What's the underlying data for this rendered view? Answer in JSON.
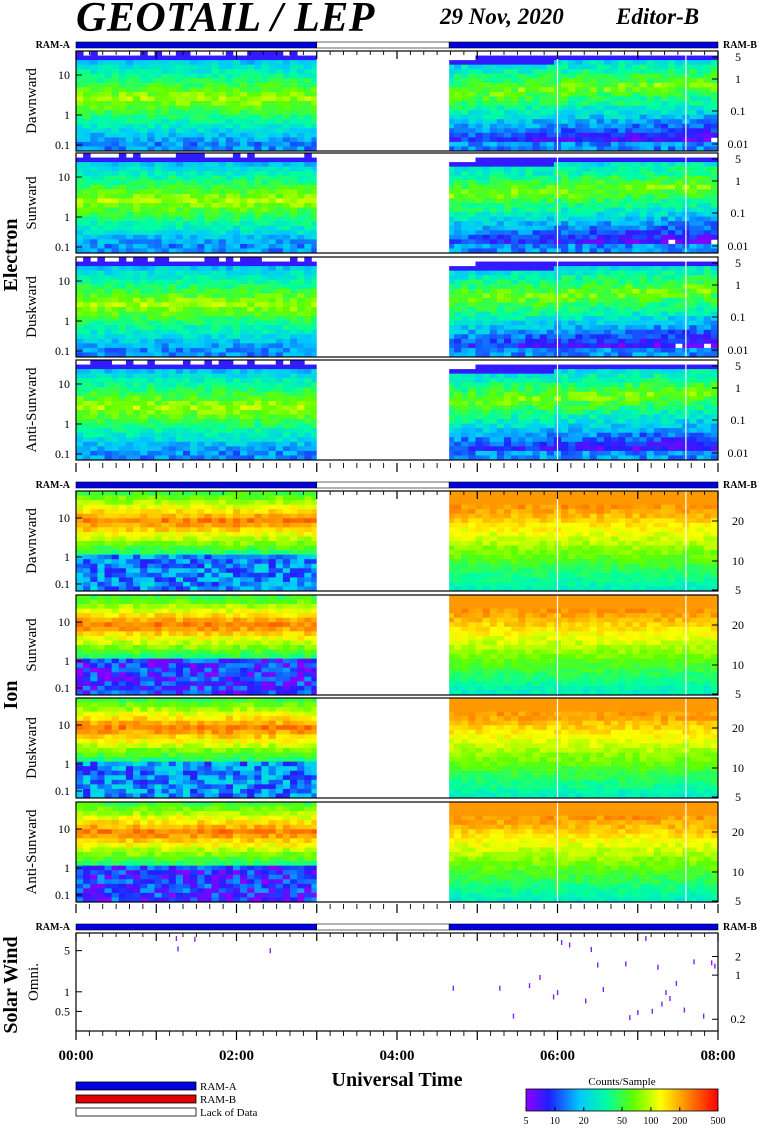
{
  "header": {
    "title": "GEOTAIL / LEP",
    "date": "29 Nov, 2020",
    "editor": "Editor-B"
  },
  "labels": {
    "ram_a": "RAM-A",
    "ram_b": "RAM-B",
    "group_electron": "Electron",
    "group_ion": "Ion",
    "group_solar_wind": "Solar Wind",
    "xlabel": "Universal Time"
  },
  "legend": {
    "items": [
      "RAM-A",
      "RAM-B",
      "Lack of Data"
    ],
    "colors": {
      "RAM-A": "#0000e0",
      "RAM-B": "#e00000",
      "Lack of Data": "#ffffff"
    }
  },
  "colorbar": {
    "title": "Counts/Sample",
    "ticks": [
      "5",
      "10",
      "20",
      "50",
      "100",
      "200",
      "500"
    ],
    "range": [
      5,
      500
    ],
    "scale": "log"
  },
  "chart_data": [
    {
      "type": "heatmap",
      "group": "Electron",
      "panels": [
        {
          "ylabel": "Dawnward",
          "left_ticks": [
            "10",
            "1",
            "0.1"
          ],
          "right_ticks": [
            "5",
            "1",
            "0.1",
            "0.01"
          ]
        },
        {
          "ylabel": "Sunward",
          "left_ticks": [
            "10",
            "1",
            "0.1"
          ],
          "right_ticks": [
            "5",
            "1",
            "0.1",
            "0.01"
          ]
        },
        {
          "ylabel": "Duskward",
          "left_ticks": [
            "10",
            "1",
            "0.1"
          ],
          "right_ticks": [
            "5",
            "1",
            "0.1",
            "0.01"
          ]
        },
        {
          "ylabel": "Anti-Sunward",
          "left_ticks": [
            "10",
            "1",
            "0.1"
          ],
          "right_ticks": [
            "5",
            "1",
            "0.1",
            "0.01"
          ]
        }
      ],
      "mode_segments": [
        {
          "mode": "RAM-A",
          "start_h": 0,
          "end_h": 3.0
        },
        {
          "mode": "Lack of Data",
          "start_h": 3.0,
          "end_h": 4.65
        },
        {
          "mode": "RAM-A",
          "start_h": 4.65,
          "end_h": 8.0
        }
      ]
    },
    {
      "type": "heatmap",
      "group": "Ion",
      "panels": [
        {
          "ylabel": "Dawnward",
          "left_ticks": [
            "10",
            "1",
            "0.1"
          ],
          "right_ticks": [
            "20",
            "10",
            "5"
          ]
        },
        {
          "ylabel": "Sunward",
          "left_ticks": [
            "10",
            "1",
            "0.1"
          ],
          "right_ticks": [
            "20",
            "10",
            "5"
          ]
        },
        {
          "ylabel": "Duskward",
          "left_ticks": [
            "10",
            "1",
            "0.1"
          ],
          "right_ticks": [
            "20",
            "10",
            "5"
          ]
        },
        {
          "ylabel": "Anti-Sunward",
          "left_ticks": [
            "10",
            "1",
            "0.1"
          ],
          "right_ticks": [
            "20",
            "10",
            "5"
          ]
        }
      ],
      "mode_segments": [
        {
          "mode": "RAM-A",
          "start_h": 0,
          "end_h": 3.0
        },
        {
          "mode": "Lack of Data",
          "start_h": 3.0,
          "end_h": 4.65
        },
        {
          "mode": "RAM-A",
          "start_h": 4.65,
          "end_h": 8.0
        }
      ]
    },
    {
      "type": "scatter",
      "group": "Solar Wind",
      "panels": [
        {
          "ylabel": "Omni.",
          "left_ticks": [
            "5",
            "1",
            "0.5"
          ],
          "right_ticks": [
            "2",
            "1",
            "0.2"
          ]
        }
      ],
      "mode_segments": [
        {
          "mode": "RAM-A",
          "start_h": 0,
          "end_h": 3.0
        },
        {
          "mode": "Lack of Data",
          "start_h": 3.0,
          "end_h": 4.65
        },
        {
          "mode": "RAM-A",
          "start_h": 4.65,
          "end_h": 8.0
        }
      ],
      "points": [
        {
          "t": 1.25,
          "v": 6.5
        },
        {
          "t": 1.27,
          "v": 4.4
        },
        {
          "t": 1.48,
          "v": 6.3
        },
        {
          "t": 2.42,
          "v": 4.1
        },
        {
          "t": 4.7,
          "v": 1.0
        },
        {
          "t": 5.28,
          "v": 1.0
        },
        {
          "t": 5.45,
          "v": 0.35
        },
        {
          "t": 5.65,
          "v": 1.1
        },
        {
          "t": 5.78,
          "v": 1.5
        },
        {
          "t": 5.95,
          "v": 0.72
        },
        {
          "t": 6.0,
          "v": 0.85
        },
        {
          "t": 6.05,
          "v": 5.6
        },
        {
          "t": 6.15,
          "v": 5.1
        },
        {
          "t": 6.35,
          "v": 0.62
        },
        {
          "t": 6.42,
          "v": 4.3
        },
        {
          "t": 6.5,
          "v": 2.4
        },
        {
          "t": 6.57,
          "v": 0.95
        },
        {
          "t": 6.85,
          "v": 2.5
        },
        {
          "t": 6.9,
          "v": 0.33
        },
        {
          "t": 7.0,
          "v": 0.4
        },
        {
          "t": 7.1,
          "v": 6.5
        },
        {
          "t": 7.18,
          "v": 0.42
        },
        {
          "t": 7.25,
          "v": 2.2
        },
        {
          "t": 7.3,
          "v": 0.55
        },
        {
          "t": 7.35,
          "v": 0.85
        },
        {
          "t": 7.4,
          "v": 0.68
        },
        {
          "t": 7.48,
          "v": 1.2
        },
        {
          "t": 7.58,
          "v": 0.44
        },
        {
          "t": 7.7,
          "v": 2.7
        },
        {
          "t": 7.82,
          "v": 0.35
        },
        {
          "t": 7.92,
          "v": 2.6
        },
        {
          "t": 7.96,
          "v": 2.3
        }
      ]
    }
  ],
  "x_axis": {
    "ticks": [
      "00:00",
      "02:00",
      "04:00",
      "06:00",
      "08:00"
    ],
    "range_h": [
      0,
      8
    ]
  }
}
